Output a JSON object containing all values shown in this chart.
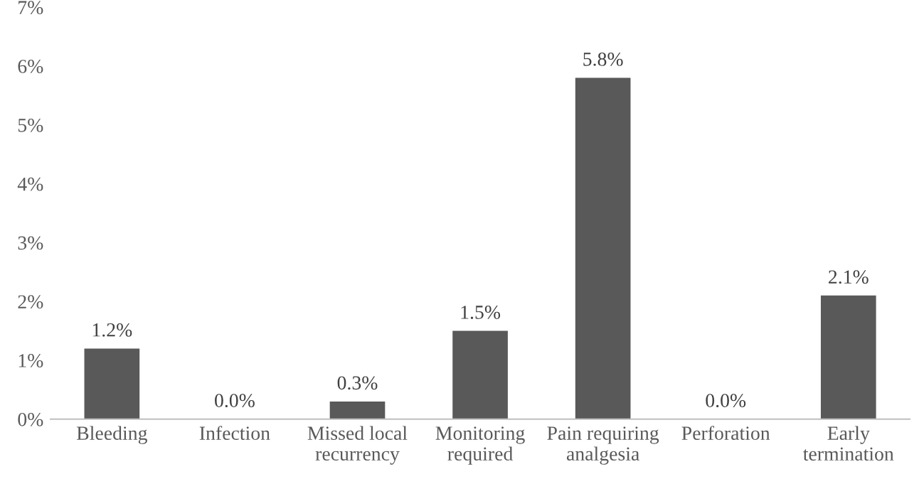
{
  "chart_data": {
    "type": "bar",
    "categories": [
      "Bleeding",
      "Infection",
      "Missed local\nrecurrency",
      "Monitoring\nrequired",
      "Pain requiring\nanalgesia",
      "Perforation",
      "Early\ntermination"
    ],
    "values": [
      1.2,
      0.0,
      0.3,
      1.5,
      5.8,
      0.0,
      2.1
    ],
    "value_labels": [
      "1.2%",
      "0.0%",
      "0.3%",
      "1.5%",
      "5.8%",
      "0.0%",
      "2.1%"
    ],
    "color": "#595959",
    "ylim": [
      0,
      7
    ],
    "yticks": [
      {
        "value": 0,
        "label": "0%"
      },
      {
        "value": 1,
        "label": "1%"
      },
      {
        "value": 2,
        "label": "2%"
      },
      {
        "value": 3,
        "label": "3%"
      },
      {
        "value": 4,
        "label": "4%"
      },
      {
        "value": 5,
        "label": "5%"
      },
      {
        "value": 6,
        "label": "6%"
      },
      {
        "value": 7,
        "label": "7%"
      }
    ],
    "grid": false,
    "legend": false
  }
}
